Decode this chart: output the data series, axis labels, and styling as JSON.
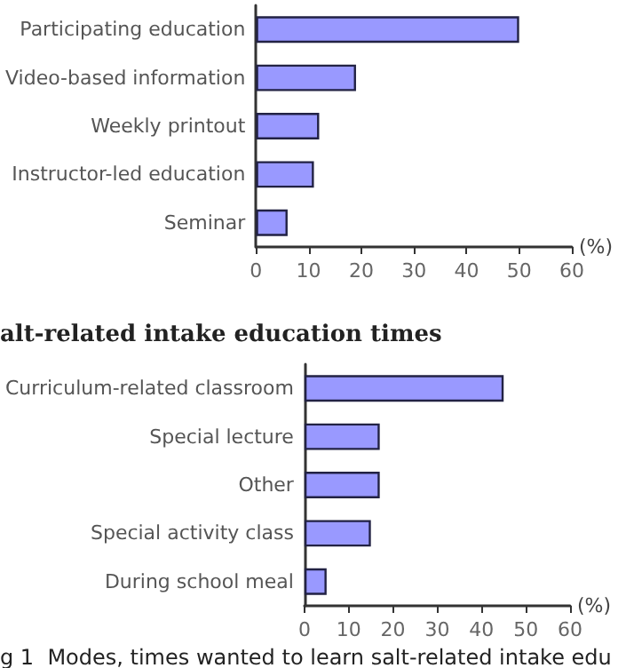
{
  "chart_data": [
    {
      "type": "bar",
      "orientation": "horizontal",
      "categories": [
        "Participating education",
        "Video-based information",
        "Weekly printout",
        "Instructor-led education",
        "Seminar"
      ],
      "values": [
        50,
        19,
        12,
        11,
        6
      ],
      "color": "#9999ff",
      "xlabel": "(%)",
      "xlim": [
        0,
        60
      ],
      "xticks": [
        0,
        10,
        20,
        30,
        40,
        50,
        60
      ],
      "grid": false
    },
    {
      "type": "bar",
      "orientation": "horizontal",
      "title": "alt-related intake education times",
      "categories": [
        "Curriculum-related classroom",
        "Special lecture",
        "Other",
        "Special activity class",
        "During school meal"
      ],
      "values": [
        45,
        17,
        17,
        15,
        5
      ],
      "color": "#9999ff",
      "xlabel": "(%)",
      "xlim": [
        0,
        60
      ],
      "xticks": [
        0,
        10,
        20,
        30,
        40,
        50,
        60
      ],
      "grid": false,
      "annotations": [
        "g 1  Modes, times wanted to learn salt-related intake edu"
      ]
    }
  ]
}
